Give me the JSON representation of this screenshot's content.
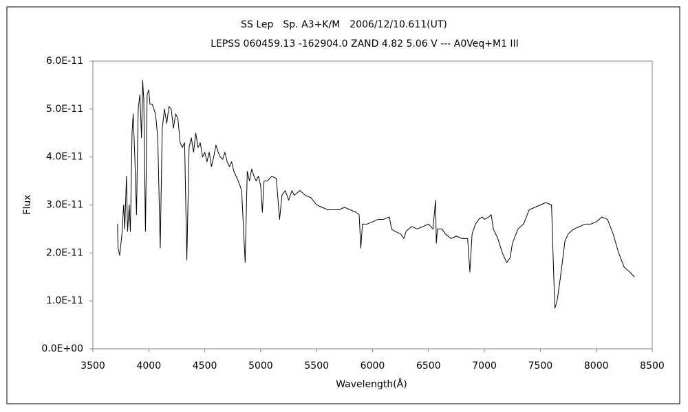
{
  "chart_data": {
    "type": "line",
    "title": "SS Lep　Sp. A3+K/M　2006/12/10.611(UT)",
    "subtitle": "LEPSS 060459.13 -162904.0 ZAND 4.82 5.06 V --- A0Veq+M1 III",
    "x_label": "Wavelength(Å)",
    "y_label": "Flux",
    "color": "#000000",
    "grid": false,
    "xlim": [
      3500,
      8500
    ],
    "xticks": [
      3500,
      4000,
      4500,
      5000,
      5500,
      6000,
      6500,
      7000,
      7500,
      8000,
      8500
    ],
    "ylim": [
      0,
      6e-11
    ],
    "yticks": [
      {
        "value": 0,
        "label": "0.0E+00"
      },
      {
        "value": 1e-11,
        "label": "1.0E-11"
      },
      {
        "value": 2e-11,
        "label": "2.0E-11"
      },
      {
        "value": 3e-11,
        "label": "3.0E-11"
      },
      {
        "value": 4e-11,
        "label": "4.0E-11"
      },
      {
        "value": 5e-11,
        "label": "5.0E-11"
      },
      {
        "value": 6e-11,
        "label": "6.0E-11"
      }
    ],
    "x": [
      3720,
      3725,
      3740,
      3760,
      3775,
      3785,
      3800,
      3810,
      3825,
      3835,
      3850,
      3860,
      3875,
      3890,
      3905,
      3920,
      3935,
      3945,
      3955,
      3970,
      3985,
      4000,
      4010,
      4030,
      4060,
      4080,
      4102,
      4120,
      4140,
      4160,
      4180,
      4200,
      4220,
      4240,
      4260,
      4280,
      4300,
      4320,
      4340,
      4360,
      4380,
      4400,
      4420,
      4440,
      4460,
      4480,
      4500,
      4520,
      4540,
      4560,
      4580,
      4600,
      4620,
      4640,
      4660,
      4680,
      4700,
      4720,
      4740,
      4760,
      4780,
      4800,
      4830,
      4861,
      4880,
      4900,
      4920,
      4940,
      4960,
      4980,
      5000,
      5015,
      5030,
      5060,
      5100,
      5140,
      5169,
      5190,
      5220,
      5250,
      5280,
      5300,
      5350,
      5400,
      5450,
      5500,
      5550,
      5600,
      5650,
      5700,
      5750,
      5800,
      5850,
      5880,
      5895,
      5910,
      5950,
      6000,
      6050,
      6100,
      6150,
      6170,
      6200,
      6250,
      6280,
      6300,
      6350,
      6400,
      6450,
      6500,
      6540,
      6563,
      6570,
      6580,
      6620,
      6650,
      6700,
      6750,
      6800,
      6850,
      6870,
      6890,
      6920,
      6950,
      6980,
      7000,
      7040,
      7060,
      7080,
      7120,
      7160,
      7200,
      7230,
      7250,
      7300,
      7350,
      7400,
      7450,
      7500,
      7550,
      7600,
      7620,
      7630,
      7650,
      7680,
      7720,
      7750,
      7800,
      7850,
      7900,
      7950,
      8000,
      8050,
      8100,
      8150,
      8200,
      8250,
      8300,
      8340
    ],
    "values": [
      2.6e-11,
      2.1e-11,
      1.95e-11,
      2.4e-11,
      3e-11,
      2.5e-11,
      3.6e-11,
      2.45e-11,
      3e-11,
      2.45e-11,
      4.5e-11,
      4.9e-11,
      4e-11,
      2.8e-11,
      5e-11,
      5.3e-11,
      4.4e-11,
      5.6e-11,
      5.2e-11,
      2.45e-11,
      5.3e-11,
      5.4e-11,
      5.1e-11,
      5.1e-11,
      4.9e-11,
      4.4e-11,
      2.1e-11,
      4.6e-11,
      5e-11,
      4.7e-11,
      5.05e-11,
      5e-11,
      4.6e-11,
      4.9e-11,
      4.8e-11,
      4.3e-11,
      4.2e-11,
      4.3e-11,
      1.85e-11,
      4.2e-11,
      4.4e-11,
      4.1e-11,
      4.5e-11,
      4.2e-11,
      4.3e-11,
      4e-11,
      4.1e-11,
      3.9e-11,
      4.1e-11,
      3.8e-11,
      4e-11,
      4.25e-11,
      4.1e-11,
      4e-11,
      3.95e-11,
      4.1e-11,
      3.9e-11,
      3.8e-11,
      3.9e-11,
      3.7e-11,
      3.6e-11,
      3.5e-11,
      3.3e-11,
      1.8e-11,
      3.7e-11,
      3.5e-11,
      3.75e-11,
      3.6e-11,
      3.5e-11,
      3.6e-11,
      3.4e-11,
      2.85e-11,
      3.5e-11,
      3.5e-11,
      3.6e-11,
      3.55e-11,
      2.7e-11,
      3.2e-11,
      3.3e-11,
      3.1e-11,
      3.3e-11,
      3.2e-11,
      3.3e-11,
      3.2e-11,
      3.15e-11,
      3e-11,
      2.95e-11,
      2.9e-11,
      2.9e-11,
      2.9e-11,
      2.95e-11,
      2.9e-11,
      2.85e-11,
      2.8e-11,
      2.1e-11,
      2.6e-11,
      2.6e-11,
      2.65e-11,
      2.7e-11,
      2.7e-11,
      2.75e-11,
      2.5e-11,
      2.45e-11,
      2.4e-11,
      2.3e-11,
      2.45e-11,
      2.55e-11,
      2.5e-11,
      2.55e-11,
      2.6e-11,
      2.5e-11,
      3.1e-11,
      2.2e-11,
      2.5e-11,
      2.5e-11,
      2.4e-11,
      2.3e-11,
      2.35e-11,
      2.3e-11,
      2.3e-11,
      1.6e-11,
      2.4e-11,
      2.6e-11,
      2.7e-11,
      2.75e-11,
      2.7e-11,
      2.75e-11,
      2.8e-11,
      2.5e-11,
      2.3e-11,
      2e-11,
      1.8e-11,
      1.9e-11,
      2.2e-11,
      2.5e-11,
      2.6e-11,
      2.9e-11,
      2.95e-11,
      3e-11,
      3.05e-11,
      3e-11,
      1.5e-11,
      8.5e-12,
      1e-11,
      1.5e-11,
      2.25e-11,
      2.4e-11,
      2.5e-11,
      2.55e-11,
      2.6e-11,
      2.6e-11,
      2.65e-11,
      2.75e-11,
      2.7e-11,
      2.4e-11,
      2e-11,
      1.7e-11,
      1.6e-11,
      1.5e-11
    ]
  }
}
